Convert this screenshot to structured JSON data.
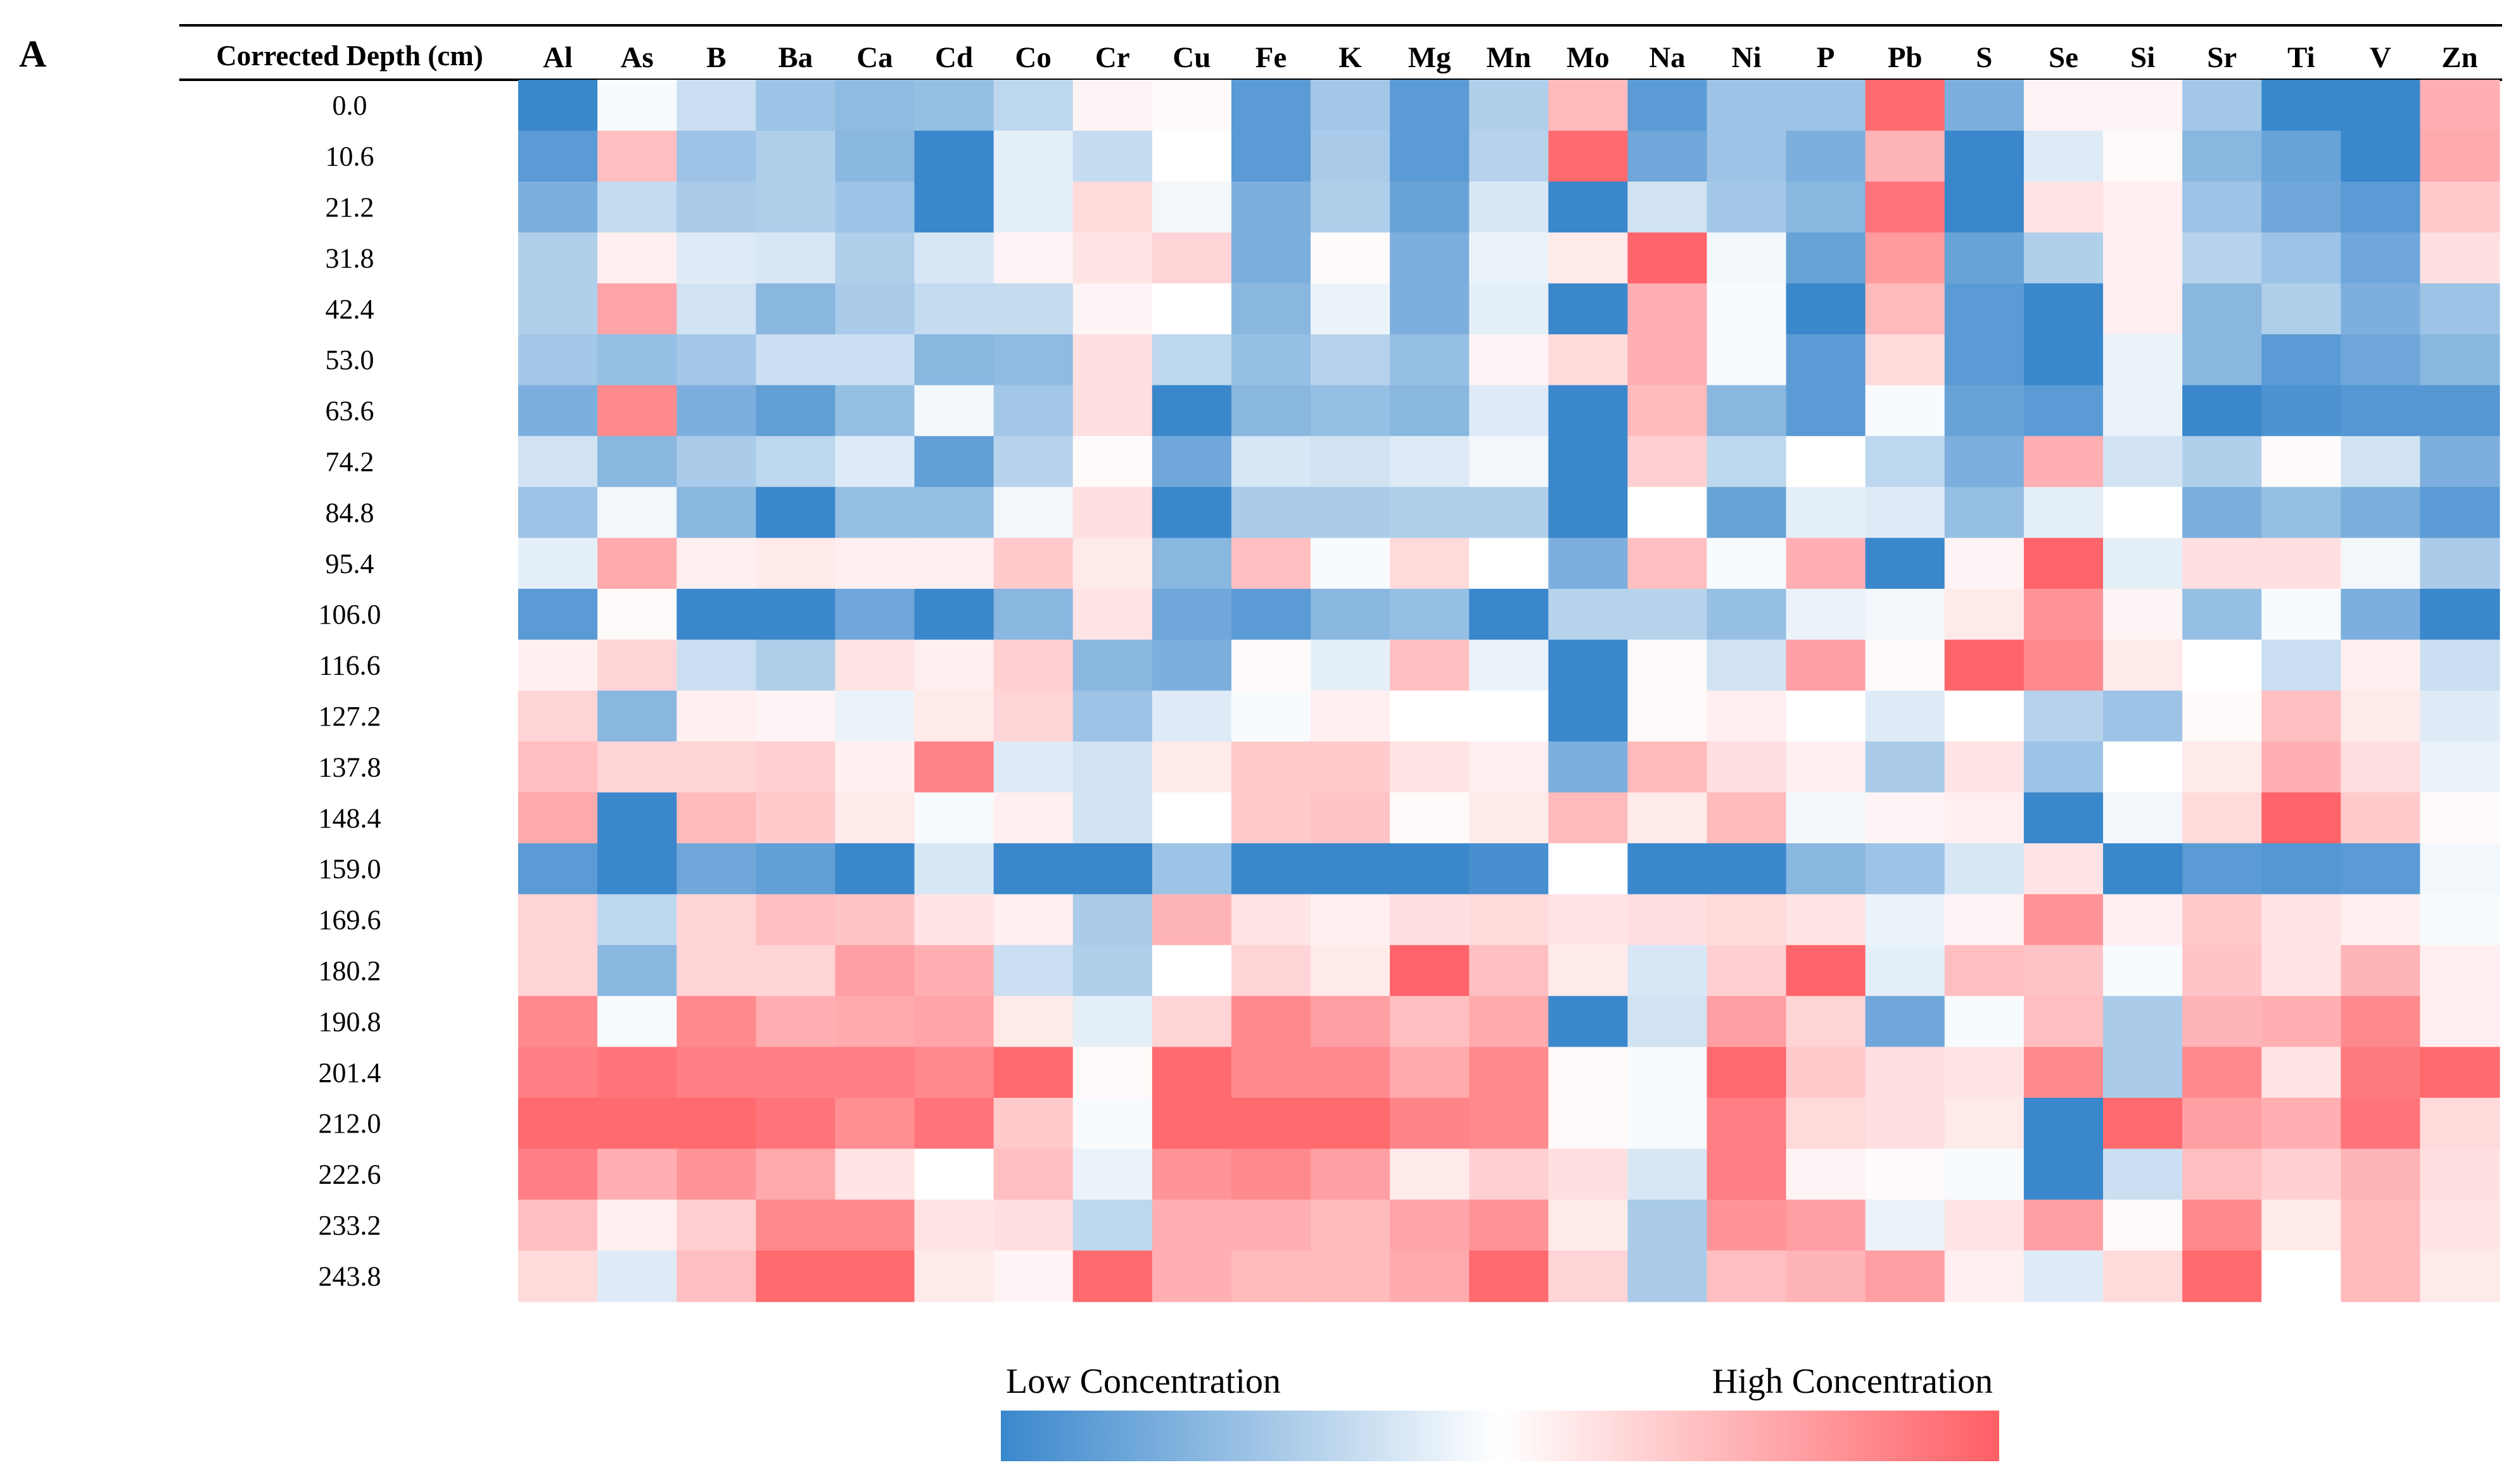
{
  "panel_label": "A",
  "legend": {
    "low_label": "Low Concentration",
    "high_label": "High Concentration",
    "low_color": "#3a87cc",
    "mid_color": "#ffffff",
    "high_color": "#ff5f65"
  },
  "chart_data": {
    "type": "heatmap",
    "title": "",
    "row_header": "Corrected Depth (cm)",
    "scale": "diverging; -3 = lowest concentration (blue), 0 = neutral (white), +3 = highest concentration (red); values estimated from cell colour",
    "value_range": [
      -3,
      3
    ],
    "columns": [
      "Al",
      "As",
      "B",
      "Ba",
      "Ca",
      "Cd",
      "Co",
      "Cr",
      "Cu",
      "Fe",
      "K",
      "Mg",
      "Mn",
      "Mo",
      "Na",
      "Ni",
      "P",
      "Pb",
      "S",
      "Se",
      "Si",
      "Sr",
      "Ti",
      "V",
      "Zn"
    ],
    "rows": [
      "0.0",
      "10.6",
      "21.2",
      "31.8",
      "42.4",
      "53.0",
      "63.6",
      "74.2",
      "84.8",
      "95.4",
      "106.0",
      "116.6",
      "127.2",
      "137.8",
      "148.4",
      "159.0",
      "169.6",
      "180.2",
      "190.8",
      "201.4",
      "212.0",
      "222.6",
      "233.2",
      "243.8"
    ],
    "values": [
      [
        -3,
        -0.1,
        -0.8,
        -1.5,
        -1.7,
        -1.6,
        -1,
        0.2,
        0.1,
        -2.5,
        -1.4,
        -2.5,
        -1.2,
        1.3,
        -2.5,
        -1.5,
        -1.5,
        2.8,
        -2,
        0.2,
        0.2,
        -1.4,
        -3,
        -3,
        1.5
      ],
      [
        -2.5,
        1.2,
        -1.5,
        -1.2,
        -1.8,
        -3,
        -0.4,
        -0.9,
        0,
        -2.5,
        -1.3,
        -2.5,
        -1.1,
        2.8,
        -2.2,
        -1.5,
        -2,
        1.4,
        -3,
        -0.5,
        0.1,
        -1.8,
        -2.3,
        -3,
        1.6
      ],
      [
        -2,
        -0.9,
        -1.3,
        -1.2,
        -1.5,
        -3,
        -0.4,
        0.7,
        -0.2,
        -2,
        -1.2,
        -2.3,
        -0.6,
        -3,
        -0.7,
        -1.4,
        -1.8,
        2.6,
        -3,
        0.5,
        0.3,
        -1.5,
        -2.2,
        -2.5,
        1
      ],
      [
        -1.2,
        0.3,
        -0.5,
        -0.6,
        -1.2,
        -0.6,
        0.2,
        0.5,
        0.8,
        -2,
        0.1,
        -2,
        -0.3,
        0.4,
        2.9,
        -0.2,
        -2.3,
        1.9,
        -2.3,
        -1.2,
        0.3,
        -1.1,
        -1.5,
        -2.2,
        0.6
      ],
      [
        -1.2,
        1.7,
        -0.7,
        -1.8,
        -1.3,
        -0.9,
        -0.9,
        0.2,
        0,
        -1.8,
        -0.3,
        -2,
        -0.4,
        -3,
        1.5,
        -0.1,
        -3,
        1.3,
        -2.5,
        -3,
        0.3,
        -1.8,
        -1.2,
        -2,
        -1.5
      ],
      [
        -1.4,
        -1.6,
        -1.4,
        -0.8,
        -0.8,
        -1.8,
        -1.7,
        0.6,
        -1,
        -1.6,
        -1.1,
        -1.6,
        0.2,
        0.7,
        1.5,
        -0.1,
        -2.5,
        0.7,
        -2.5,
        -3,
        -0.3,
        -1.8,
        -2.5,
        -2.2,
        -1.8
      ],
      [
        -2,
        2.2,
        -2,
        -2.4,
        -1.6,
        -0.2,
        -1.4,
        0.6,
        -3,
        -1.8,
        -1.6,
        -1.8,
        -0.5,
        -3,
        1.3,
        -1.8,
        -2.5,
        -0.1,
        -2.3,
        -2.5,
        -0.3,
        -3,
        -2.7,
        -2.6,
        -2.6
      ],
      [
        -0.7,
        -1.8,
        -1.3,
        -1,
        -0.5,
        -2.4,
        -1.1,
        0.1,
        -2.2,
        -0.6,
        -0.7,
        -0.5,
        -0.2,
        -3,
        0.9,
        -1,
        0,
        -1,
        -2,
        1.5,
        -0.7,
        -1.2,
        0.1,
        -0.7,
        -2
      ],
      [
        -1.5,
        -0.2,
        -1.8,
        -3,
        -1.6,
        -1.6,
        -0.2,
        0.6,
        -3,
        -1.3,
        -1.3,
        -1.2,
        -1.2,
        -3,
        0,
        -2.3,
        -0.4,
        -0.5,
        -1.6,
        -0.4,
        0,
        -2,
        -1.6,
        -2,
        -2.5
      ],
      [
        -0.4,
        1.6,
        0.3,
        0.4,
        0.3,
        0.3,
        1,
        0.4,
        -1.8,
        1.2,
        -0.1,
        0.7,
        0,
        -2,
        1.2,
        -0.1,
        1.5,
        -3,
        0.2,
        2.9,
        -0.4,
        0.6,
        0.6,
        -0.2,
        -1.3
      ],
      [
        -2.5,
        0.1,
        -3,
        -3,
        -2.2,
        -3,
        -1.8,
        0.5,
        -2.2,
        -2.5,
        -1.8,
        -1.6,
        -3,
        -1.1,
        -1.1,
        -1.6,
        -0.3,
        -0.2,
        0.4,
        2,
        0.2,
        -1.6,
        -0.1,
        -2,
        -3
      ],
      [
        0.3,
        0.8,
        -0.8,
        -1.2,
        0.5,
        0.3,
        0.9,
        -1.8,
        -2,
        0.1,
        -0.4,
        1.2,
        -0.3,
        -3,
        0.1,
        -0.7,
        1.8,
        0.1,
        2.9,
        2.2,
        0.4,
        0,
        -0.8,
        0.3,
        -0.8
      ],
      [
        0.8,
        -1.8,
        0.3,
        0.2,
        -0.3,
        0.4,
        0.8,
        -1.5,
        -0.5,
        -0.1,
        0.3,
        0,
        0,
        -3,
        0.1,
        0.3,
        0,
        -0.5,
        0,
        -1.1,
        -1.5,
        0.1,
        1.2,
        0.4,
        -0.5
      ],
      [
        1.2,
        0.8,
        0.8,
        0.9,
        0.3,
        2.3,
        -0.5,
        -0.7,
        0.4,
        1,
        1,
        0.5,
        0.3,
        -2,
        1.3,
        0.6,
        0.3,
        -1.3,
        0.5,
        -1.5,
        0,
        0.4,
        1.5,
        0.6,
        -0.3
      ],
      [
        1.6,
        -3,
        1.3,
        1,
        0.4,
        -0.1,
        0.3,
        -0.7,
        0,
        1,
        1.1,
        0.1,
        0.4,
        1.3,
        0.4,
        1.3,
        -0.2,
        0.2,
        0.3,
        -3,
        -0.2,
        0.7,
        2.9,
        1,
        0.1
      ],
      [
        -2.5,
        -3,
        -2.2,
        -2.4,
        -3,
        -0.6,
        -3,
        -3,
        -1.5,
        -3,
        -3,
        -3,
        -2.8,
        0,
        -3,
        -3,
        -1.8,
        -1.5,
        -0.6,
        0.5,
        -3,
        -2.5,
        -2.6,
        -2.5,
        -0.2
      ],
      [
        0.8,
        -1,
        0.8,
        1.2,
        1.1,
        0.5,
        0.3,
        -1.3,
        1.4,
        0.5,
        0.3,
        0.6,
        0.7,
        0.5,
        0.6,
        0.7,
        0.5,
        -0.3,
        0.2,
        2,
        0.3,
        1,
        0.5,
        0.3,
        -0.1
      ],
      [
        0.8,
        -1.8,
        0.8,
        0.8,
        1.8,
        1.5,
        -0.8,
        -1.2,
        0,
        0.8,
        0.4,
        2.9,
        1.2,
        0.4,
        -0.6,
        0.9,
        2.9,
        -0.4,
        1.2,
        1.1,
        -0.1,
        1.1,
        0.5,
        1.4,
        0.3
      ],
      [
        2.2,
        -0.1,
        2.2,
        1.5,
        1.6,
        1.7,
        0.4,
        -0.4,
        0.8,
        2.2,
        1.8,
        1.2,
        1.6,
        -3,
        -0.7,
        1.8,
        0.8,
        -2.2,
        -0.1,
        1.2,
        -1.3,
        1.4,
        1.5,
        2.2,
        0.3
      ],
      [
        2.4,
        2.6,
        2.4,
        2.4,
        2.4,
        2.2,
        2.8,
        0.1,
        2.8,
        2.2,
        2.2,
        1.6,
        2.2,
        0.1,
        -0.1,
        2.8,
        1,
        0.6,
        0.5,
        2.2,
        -1.3,
        2.2,
        0.5,
        2.5,
        2.8
      ],
      [
        2.8,
        2.8,
        2.8,
        2.6,
        2.1,
        2.6,
        1,
        -0.1,
        2.8,
        2.8,
        2.8,
        2.3,
        2.2,
        0.1,
        -0.1,
        2.4,
        0.7,
        0.6,
        0.4,
        -3,
        2.8,
        1.8,
        1.5,
        2.6,
        0.7
      ],
      [
        2.4,
        1.5,
        2,
        1.6,
        0.5,
        0,
        1.2,
        -0.3,
        2,
        2.2,
        1.8,
        0.4,
        0.9,
        0.6,
        -0.6,
        2.4,
        0.2,
        0.1,
        -0.1,
        -3,
        -0.8,
        1.2,
        0.9,
        1.4,
        0.6
      ],
      [
        1.2,
        0.3,
        0.9,
        2.2,
        2.2,
        0.5,
        0.6,
        -1,
        1.5,
        1.5,
        1.3,
        1.7,
        2,
        0.4,
        -1.3,
        2,
        1.8,
        -0.3,
        0.5,
        1.8,
        0.1,
        2.2,
        0.4,
        1.3,
        0.5
      ],
      [
        0.7,
        -0.5,
        1.2,
        2.8,
        2.8,
        0.4,
        0.2,
        2.8,
        1.5,
        1.3,
        1.3,
        1.6,
        2.8,
        0.8,
        -1.3,
        1.2,
        1.4,
        1.8,
        0.3,
        -0.5,
        0.7,
        2.8,
        0,
        1.3,
        0.4
      ]
    ]
  }
}
